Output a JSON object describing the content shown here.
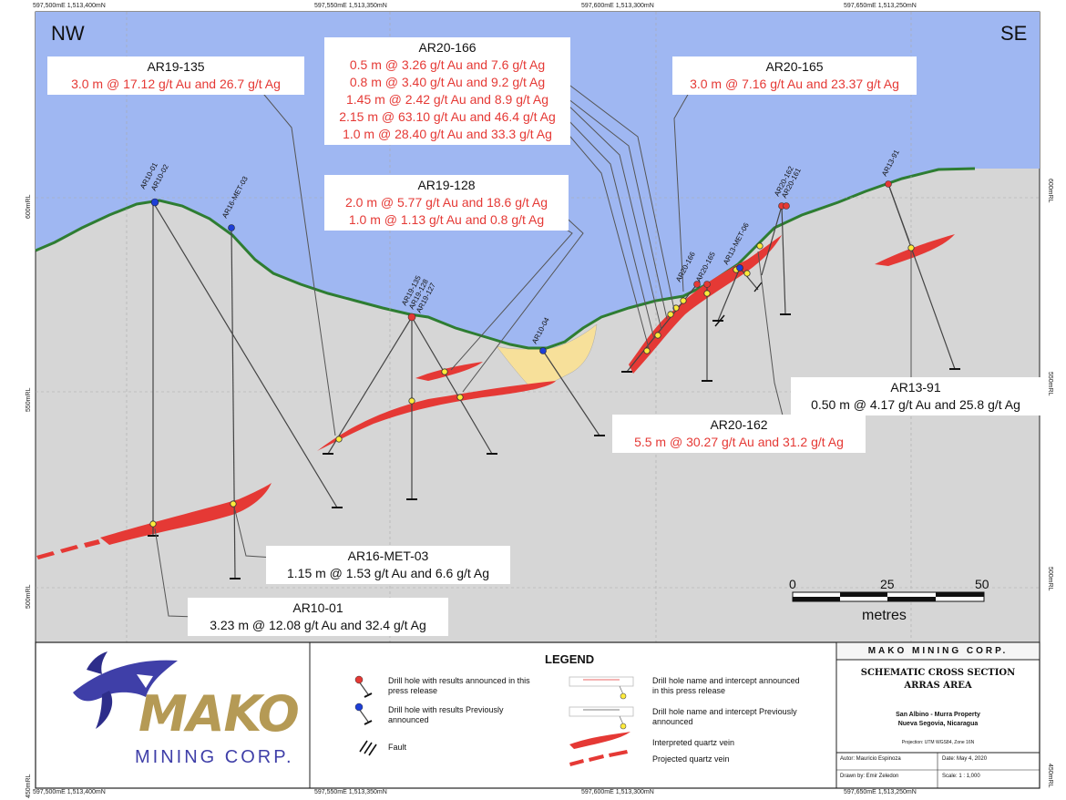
{
  "axes": {
    "top_ticks": [
      "597,500mE   1,513,400mN",
      "597,550mE   1,513,350mN",
      "597,600mE   1,513,300mN",
      "597,650mE   1,513,250mN"
    ],
    "bottom_ticks": [
      "597,500mE   1,513,400mN",
      "597,550mE   1,513,350mN",
      "597,600mE   1,513,300mN",
      "597,650mE   1,513,250mN"
    ],
    "left_rl": [
      "600mRL",
      "550mRL",
      "500mRL",
      "450mRL"
    ],
    "right_rl": [
      "600mRL",
      "550mRL",
      "500mRL",
      "450mRL"
    ]
  },
  "directions": {
    "left": "NW",
    "right": "SE"
  },
  "callouts": {
    "ar19_135": {
      "name": "AR19-135",
      "lines": [
        "3.0 m @ 17.12 g/t Au and 26.7 g/t Ag"
      ]
    },
    "ar20_166": {
      "name": "AR20-166",
      "lines": [
        "0.5 m @ 3.26 g/t Au and 7.6 g/t Ag",
        "0.8 m @ 3.40 g/t Au and 9.2 g/t Ag",
        "1.45 m @ 2.42 g/t Au and 8.9 g/t Ag",
        "2.15 m @ 63.10 g/t Au and 46.4 g/t Ag",
        "1.0 m @ 28.40 g/t Au and 33.3 g/t Ag"
      ]
    },
    "ar20_165": {
      "name": "AR20-165",
      "lines": [
        "3.0 m @ 7.16 g/t Au and 23.37 g/t Ag"
      ]
    },
    "ar19_128": {
      "name": "AR19-128",
      "lines": [
        "2.0 m @ 5.77 g/t Au and 18.6 g/t Ag",
        "1.0 m @ 1.13 g/t Au and 0.8 g/t Ag"
      ]
    },
    "ar13_91": {
      "name": "AR13-91",
      "lines": [
        "0.50 m @ 4.17 g/t Au and 25.8 g/t Ag"
      ]
    },
    "ar20_162": {
      "name": "AR20-162",
      "lines": [
        "5.5 m @ 30.27 g/t Au and 31.2 g/t Ag"
      ]
    },
    "ar16_met_03": {
      "name": "AR16-MET-03",
      "lines": [
        "1.15 m @ 1.53 g/t Au and 6.6 g/t Ag"
      ]
    },
    "ar10_01": {
      "name": "AR10-01",
      "lines": [
        "3.23 m @ 12.08 g/t Au and 32.4 g/t Ag"
      ]
    }
  },
  "hole_labels": {
    "ar10_01": "AR10-01",
    "ar10_02": "AR10-02",
    "ar16_met_03": "AR16-MET-03",
    "ar19_135": "AR19-135",
    "ar19_128": "AR19-128",
    "ar19_127": "AR19-127",
    "ar10_04": "AR10-04",
    "ar20_166": "AR20-166",
    "ar20_165": "AR20-165",
    "ar13_met_06": "AR13-MET-06",
    "ar20_162": "AR20-162",
    "ar20_161": "AR20-161",
    "ar13_91": "AR13-91"
  },
  "scale_bar": {
    "ticks": [
      "0",
      "25",
      "50"
    ],
    "unit": "metres"
  },
  "logo": {
    "word": "MAKO",
    "sub": "MINING CORP."
  },
  "legend": {
    "title": "LEGEND",
    "items": [
      "Drill hole with results announced in this press release",
      "Drill hole with results Previously announced",
      "Fault",
      "Drill hole name and intercept announced in this press release",
      "Drill hole name and intercept Previously announced",
      "Interpreted quartz vein",
      "Projected quartz vein"
    ]
  },
  "title_block": {
    "company": "MAKO MINING CORP.",
    "title1": "SCHEMATIC CROSS SECTION",
    "title2": "ARRAS AREA",
    "property": "San Albino - Murra Property",
    "location": "Nueva Segovia, Nicaragua",
    "projection": "Projection: UTM WGS84, Zone 16N",
    "author": "Autor: Mauricio Espinoza",
    "date": "Date: May 4, 2020",
    "drawn": "Drawn by: Emir Zeledon",
    "scale": "Scale: 1 : 1,000"
  },
  "colors": {
    "sky": "#9fb7f2",
    "ground": "#d6d6d6",
    "topo": "#2e7d32",
    "vein": "#e53935",
    "fill": "#f7e09a",
    "text_red": "#e53935",
    "new_hole": "#e53935",
    "old_hole": "#1e3fd6"
  }
}
